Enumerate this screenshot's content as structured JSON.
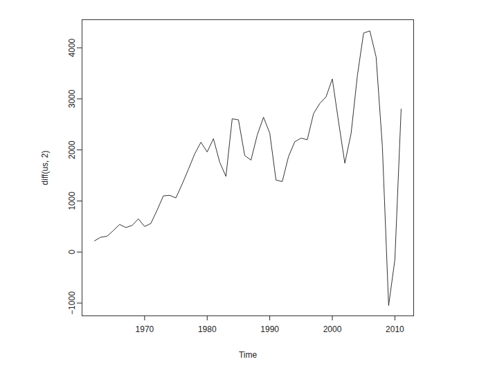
{
  "chart_data": {
    "type": "line",
    "xlabel": "Time",
    "ylabel": "diff(us, 2)",
    "x": [
      1962,
      1963,
      1964,
      1965,
      1966,
      1967,
      1968,
      1969,
      1970,
      1971,
      1972,
      1973,
      1974,
      1975,
      1976,
      1977,
      1978,
      1979,
      1980,
      1981,
      1982,
      1983,
      1984,
      1985,
      1986,
      1987,
      1988,
      1989,
      1990,
      1991,
      1992,
      1993,
      1994,
      1995,
      1996,
      1997,
      1998,
      1999,
      2000,
      2001,
      2002,
      2003,
      2004,
      2005,
      2006,
      2007,
      2008,
      2009,
      2010,
      2011
    ],
    "values": [
      220,
      290,
      310,
      420,
      540,
      480,
      520,
      650,
      500,
      560,
      820,
      1100,
      1110,
      1060,
      1330,
      1620,
      1920,
      2150,
      1960,
      2220,
      1760,
      1480,
      2610,
      2590,
      1890,
      1800,
      2290,
      2640,
      2330,
      1410,
      1380,
      1870,
      2160,
      2230,
      2200,
      2710,
      2910,
      3040,
      3390,
      2550,
      1740,
      2320,
      3450,
      4290,
      4330,
      3820,
      2070,
      -1050,
      -150,
      2800
    ],
    "color": "#333333",
    "xlim": [
      1960,
      2013
    ],
    "xticks": [
      1970,
      1980,
      1990,
      2000,
      2010
    ],
    "ylim": [
      -1250,
      4550
    ],
    "yticks": [
      -1000,
      0,
      1000,
      2000,
      3000,
      4000
    ],
    "grid": false
  }
}
